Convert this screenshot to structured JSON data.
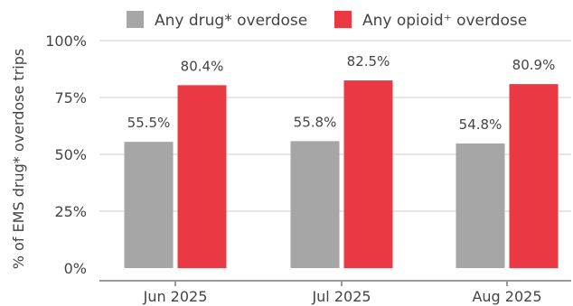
{
  "chart_data": {
    "type": "bar",
    "categories": [
      "Jun 2025",
      "Jul 2025",
      "Aug 2025"
    ],
    "series": [
      {
        "name": "Any drug* overdose",
        "values": [
          55.5,
          55.8,
          54.8
        ],
        "labels": [
          "55.5%",
          "55.8%",
          "54.8%"
        ],
        "color": "#a6a6a6"
      },
      {
        "name": "Any opioid⁺ overdose",
        "values": [
          80.4,
          82.5,
          80.9
        ],
        "labels": [
          "80.4%",
          "82.5%",
          "80.9%"
        ],
        "color": "#ea3943"
      }
    ],
    "ylabel": "% of EMS drug* overdose trips",
    "ylim": [
      0,
      100
    ],
    "yticks": [
      0,
      25,
      50,
      75,
      100
    ],
    "ytick_labels": [
      "0%",
      "25%",
      "50%",
      "75%",
      "100%"
    ],
    "grid": true,
    "legend_position": "top"
  }
}
